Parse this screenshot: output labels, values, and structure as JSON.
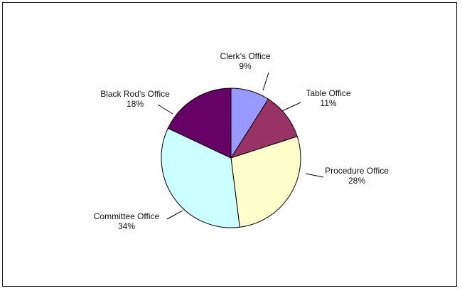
{
  "chart_data": {
    "type": "pie",
    "title": "",
    "slices": [
      {
        "label": "Clerk’s Office",
        "pct_label": "9%",
        "value": 9,
        "color": "#9999ff"
      },
      {
        "label": "Table Office",
        "pct_label": "11%",
        "value": 11,
        "color": "#993366"
      },
      {
        "label": "Procedure Office",
        "pct_label": "28%",
        "value": 28,
        "color": "#ffffcc"
      },
      {
        "label": "Committee  Office",
        "pct_label": "34%",
        "value": 34,
        "color": "#ccffff"
      },
      {
        "label": "Black Rod’s Office",
        "pct_label": "18%",
        "value": 18,
        "color": "#660066"
      }
    ],
    "legend": "none",
    "labels_position": "outside-with-leader-lines"
  }
}
